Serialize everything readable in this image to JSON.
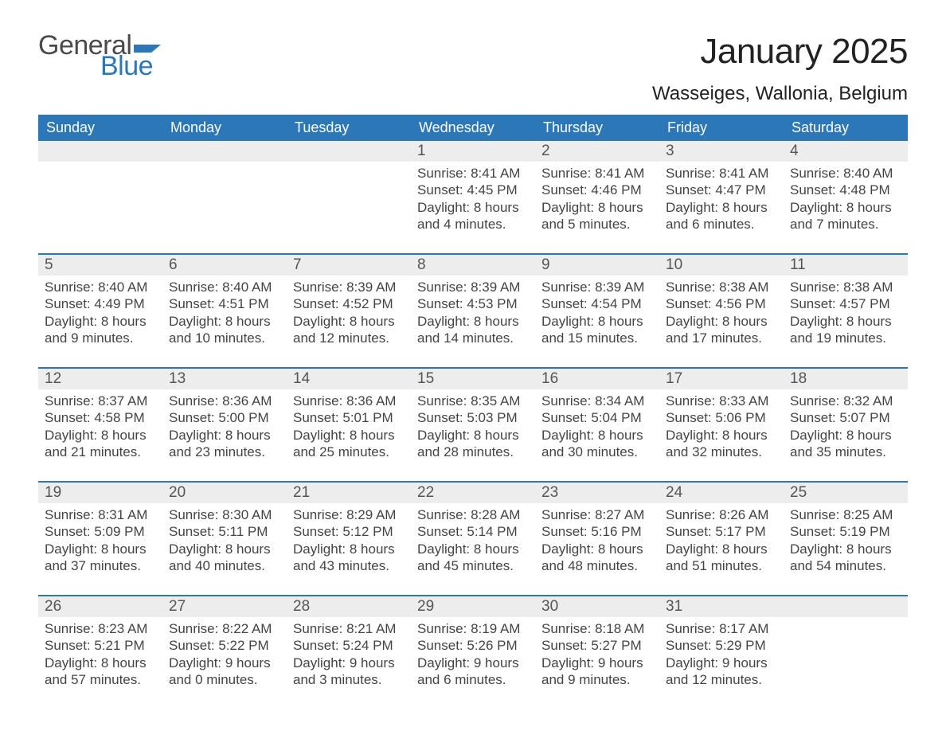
{
  "logo": {
    "word1": "General",
    "word2": "Blue",
    "flag_color": "#2c77b8",
    "text_gray": "#4a4a4a"
  },
  "header": {
    "title": "January 2025",
    "location": "Wasseiges, Wallonia, Belgium"
  },
  "colors": {
    "header_bg": "#2c77b8",
    "header_text": "#ffffff",
    "daynum_bg": "#ededed",
    "body_text": "#444444",
    "rule": "#2c77b8",
    "page_bg": "#ffffff"
  },
  "day_names": [
    "Sunday",
    "Monday",
    "Tuesday",
    "Wednesday",
    "Thursday",
    "Friday",
    "Saturday"
  ],
  "weeks": [
    [
      {
        "n": "",
        "sr": "",
        "ss": "",
        "dl1": "",
        "dl2": ""
      },
      {
        "n": "",
        "sr": "",
        "ss": "",
        "dl1": "",
        "dl2": ""
      },
      {
        "n": "",
        "sr": "",
        "ss": "",
        "dl1": "",
        "dl2": ""
      },
      {
        "n": "1",
        "sr": "Sunrise: 8:41 AM",
        "ss": "Sunset: 4:45 PM",
        "dl1": "Daylight: 8 hours",
        "dl2": "and 4 minutes."
      },
      {
        "n": "2",
        "sr": "Sunrise: 8:41 AM",
        "ss": "Sunset: 4:46 PM",
        "dl1": "Daylight: 8 hours",
        "dl2": "and 5 minutes."
      },
      {
        "n": "3",
        "sr": "Sunrise: 8:41 AM",
        "ss": "Sunset: 4:47 PM",
        "dl1": "Daylight: 8 hours",
        "dl2": "and 6 minutes."
      },
      {
        "n": "4",
        "sr": "Sunrise: 8:40 AM",
        "ss": "Sunset: 4:48 PM",
        "dl1": "Daylight: 8 hours",
        "dl2": "and 7 minutes."
      }
    ],
    [
      {
        "n": "5",
        "sr": "Sunrise: 8:40 AM",
        "ss": "Sunset: 4:49 PM",
        "dl1": "Daylight: 8 hours",
        "dl2": "and 9 minutes."
      },
      {
        "n": "6",
        "sr": "Sunrise: 8:40 AM",
        "ss": "Sunset: 4:51 PM",
        "dl1": "Daylight: 8 hours",
        "dl2": "and 10 minutes."
      },
      {
        "n": "7",
        "sr": "Sunrise: 8:39 AM",
        "ss": "Sunset: 4:52 PM",
        "dl1": "Daylight: 8 hours",
        "dl2": "and 12 minutes."
      },
      {
        "n": "8",
        "sr": "Sunrise: 8:39 AM",
        "ss": "Sunset: 4:53 PM",
        "dl1": "Daylight: 8 hours",
        "dl2": "and 14 minutes."
      },
      {
        "n": "9",
        "sr": "Sunrise: 8:39 AM",
        "ss": "Sunset: 4:54 PM",
        "dl1": "Daylight: 8 hours",
        "dl2": "and 15 minutes."
      },
      {
        "n": "10",
        "sr": "Sunrise: 8:38 AM",
        "ss": "Sunset: 4:56 PM",
        "dl1": "Daylight: 8 hours",
        "dl2": "and 17 minutes."
      },
      {
        "n": "11",
        "sr": "Sunrise: 8:38 AM",
        "ss": "Sunset: 4:57 PM",
        "dl1": "Daylight: 8 hours",
        "dl2": "and 19 minutes."
      }
    ],
    [
      {
        "n": "12",
        "sr": "Sunrise: 8:37 AM",
        "ss": "Sunset: 4:58 PM",
        "dl1": "Daylight: 8 hours",
        "dl2": "and 21 minutes."
      },
      {
        "n": "13",
        "sr": "Sunrise: 8:36 AM",
        "ss": "Sunset: 5:00 PM",
        "dl1": "Daylight: 8 hours",
        "dl2": "and 23 minutes."
      },
      {
        "n": "14",
        "sr": "Sunrise: 8:36 AM",
        "ss": "Sunset: 5:01 PM",
        "dl1": "Daylight: 8 hours",
        "dl2": "and 25 minutes."
      },
      {
        "n": "15",
        "sr": "Sunrise: 8:35 AM",
        "ss": "Sunset: 5:03 PM",
        "dl1": "Daylight: 8 hours",
        "dl2": "and 28 minutes."
      },
      {
        "n": "16",
        "sr": "Sunrise: 8:34 AM",
        "ss": "Sunset: 5:04 PM",
        "dl1": "Daylight: 8 hours",
        "dl2": "and 30 minutes."
      },
      {
        "n": "17",
        "sr": "Sunrise: 8:33 AM",
        "ss": "Sunset: 5:06 PM",
        "dl1": "Daylight: 8 hours",
        "dl2": "and 32 minutes."
      },
      {
        "n": "18",
        "sr": "Sunrise: 8:32 AM",
        "ss": "Sunset: 5:07 PM",
        "dl1": "Daylight: 8 hours",
        "dl2": "and 35 minutes."
      }
    ],
    [
      {
        "n": "19",
        "sr": "Sunrise: 8:31 AM",
        "ss": "Sunset: 5:09 PM",
        "dl1": "Daylight: 8 hours",
        "dl2": "and 37 minutes."
      },
      {
        "n": "20",
        "sr": "Sunrise: 8:30 AM",
        "ss": "Sunset: 5:11 PM",
        "dl1": "Daylight: 8 hours",
        "dl2": "and 40 minutes."
      },
      {
        "n": "21",
        "sr": "Sunrise: 8:29 AM",
        "ss": "Sunset: 5:12 PM",
        "dl1": "Daylight: 8 hours",
        "dl2": "and 43 minutes."
      },
      {
        "n": "22",
        "sr": "Sunrise: 8:28 AM",
        "ss": "Sunset: 5:14 PM",
        "dl1": "Daylight: 8 hours",
        "dl2": "and 45 minutes."
      },
      {
        "n": "23",
        "sr": "Sunrise: 8:27 AM",
        "ss": "Sunset: 5:16 PM",
        "dl1": "Daylight: 8 hours",
        "dl2": "and 48 minutes."
      },
      {
        "n": "24",
        "sr": "Sunrise: 8:26 AM",
        "ss": "Sunset: 5:17 PM",
        "dl1": "Daylight: 8 hours",
        "dl2": "and 51 minutes."
      },
      {
        "n": "25",
        "sr": "Sunrise: 8:25 AM",
        "ss": "Sunset: 5:19 PM",
        "dl1": "Daylight: 8 hours",
        "dl2": "and 54 minutes."
      }
    ],
    [
      {
        "n": "26",
        "sr": "Sunrise: 8:23 AM",
        "ss": "Sunset: 5:21 PM",
        "dl1": "Daylight: 8 hours",
        "dl2": "and 57 minutes."
      },
      {
        "n": "27",
        "sr": "Sunrise: 8:22 AM",
        "ss": "Sunset: 5:22 PM",
        "dl1": "Daylight: 9 hours",
        "dl2": "and 0 minutes."
      },
      {
        "n": "28",
        "sr": "Sunrise: 8:21 AM",
        "ss": "Sunset: 5:24 PM",
        "dl1": "Daylight: 9 hours",
        "dl2": "and 3 minutes."
      },
      {
        "n": "29",
        "sr": "Sunrise: 8:19 AM",
        "ss": "Sunset: 5:26 PM",
        "dl1": "Daylight: 9 hours",
        "dl2": "and 6 minutes."
      },
      {
        "n": "30",
        "sr": "Sunrise: 8:18 AM",
        "ss": "Sunset: 5:27 PM",
        "dl1": "Daylight: 9 hours",
        "dl2": "and 9 minutes."
      },
      {
        "n": "31",
        "sr": "Sunrise: 8:17 AM",
        "ss": "Sunset: 5:29 PM",
        "dl1": "Daylight: 9 hours",
        "dl2": "and 12 minutes."
      },
      {
        "n": "",
        "sr": "",
        "ss": "",
        "dl1": "",
        "dl2": ""
      }
    ]
  ]
}
